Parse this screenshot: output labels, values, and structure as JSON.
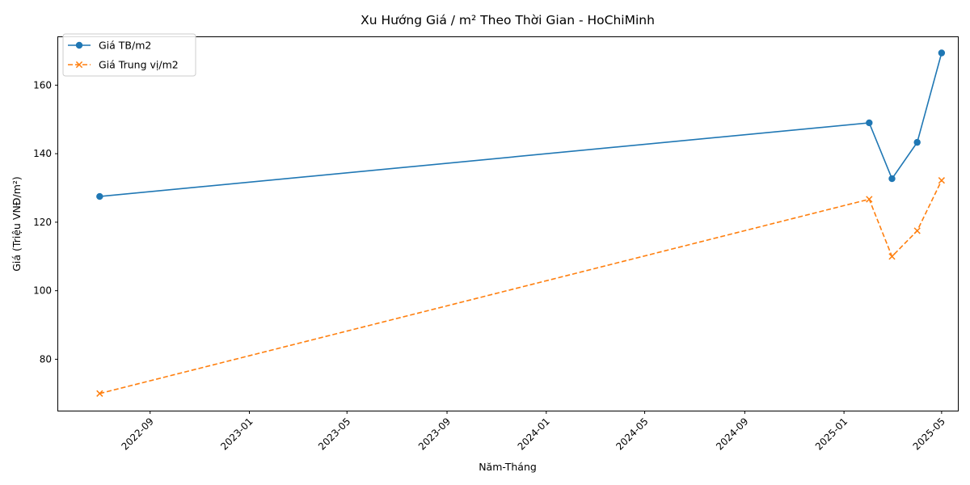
{
  "chart_data": {
    "type": "line",
    "title": "Xu Hướng Giá / m² Theo Thời Gian - HoChiMinh",
    "xlabel": "Năm-Tháng",
    "ylabel": "Giá (Triệu VNĐ/m²)",
    "xlim": [
      "2022-05-11",
      "2025-05-21"
    ],
    "ylim": [
      65,
      174
    ],
    "x_ticks": [
      "2022-09",
      "2023-01",
      "2023-05",
      "2023-09",
      "2024-01",
      "2024-05",
      "2024-09",
      "2025-01",
      "2025-05"
    ],
    "y_ticks": [
      80,
      100,
      120,
      140,
      160
    ],
    "grid": false,
    "legend_position": "top-left",
    "x": [
      "2022-07-01",
      "2025-02-01",
      "2025-03-01",
      "2025-04-01",
      "2025-05-01"
    ],
    "series": [
      {
        "name": "Giá TB/m2",
        "values": [
          127.5,
          149.0,
          132.7,
          143.3,
          169.4
        ],
        "color": "#1f77b4",
        "marker": "circle",
        "line_style": "solid"
      },
      {
        "name": "Giá Trung vị/m2",
        "values": [
          70.0,
          126.7,
          110.0,
          117.5,
          132.2
        ],
        "color": "#ff7f0e",
        "marker": "x",
        "line_style": "dashed"
      }
    ]
  }
}
